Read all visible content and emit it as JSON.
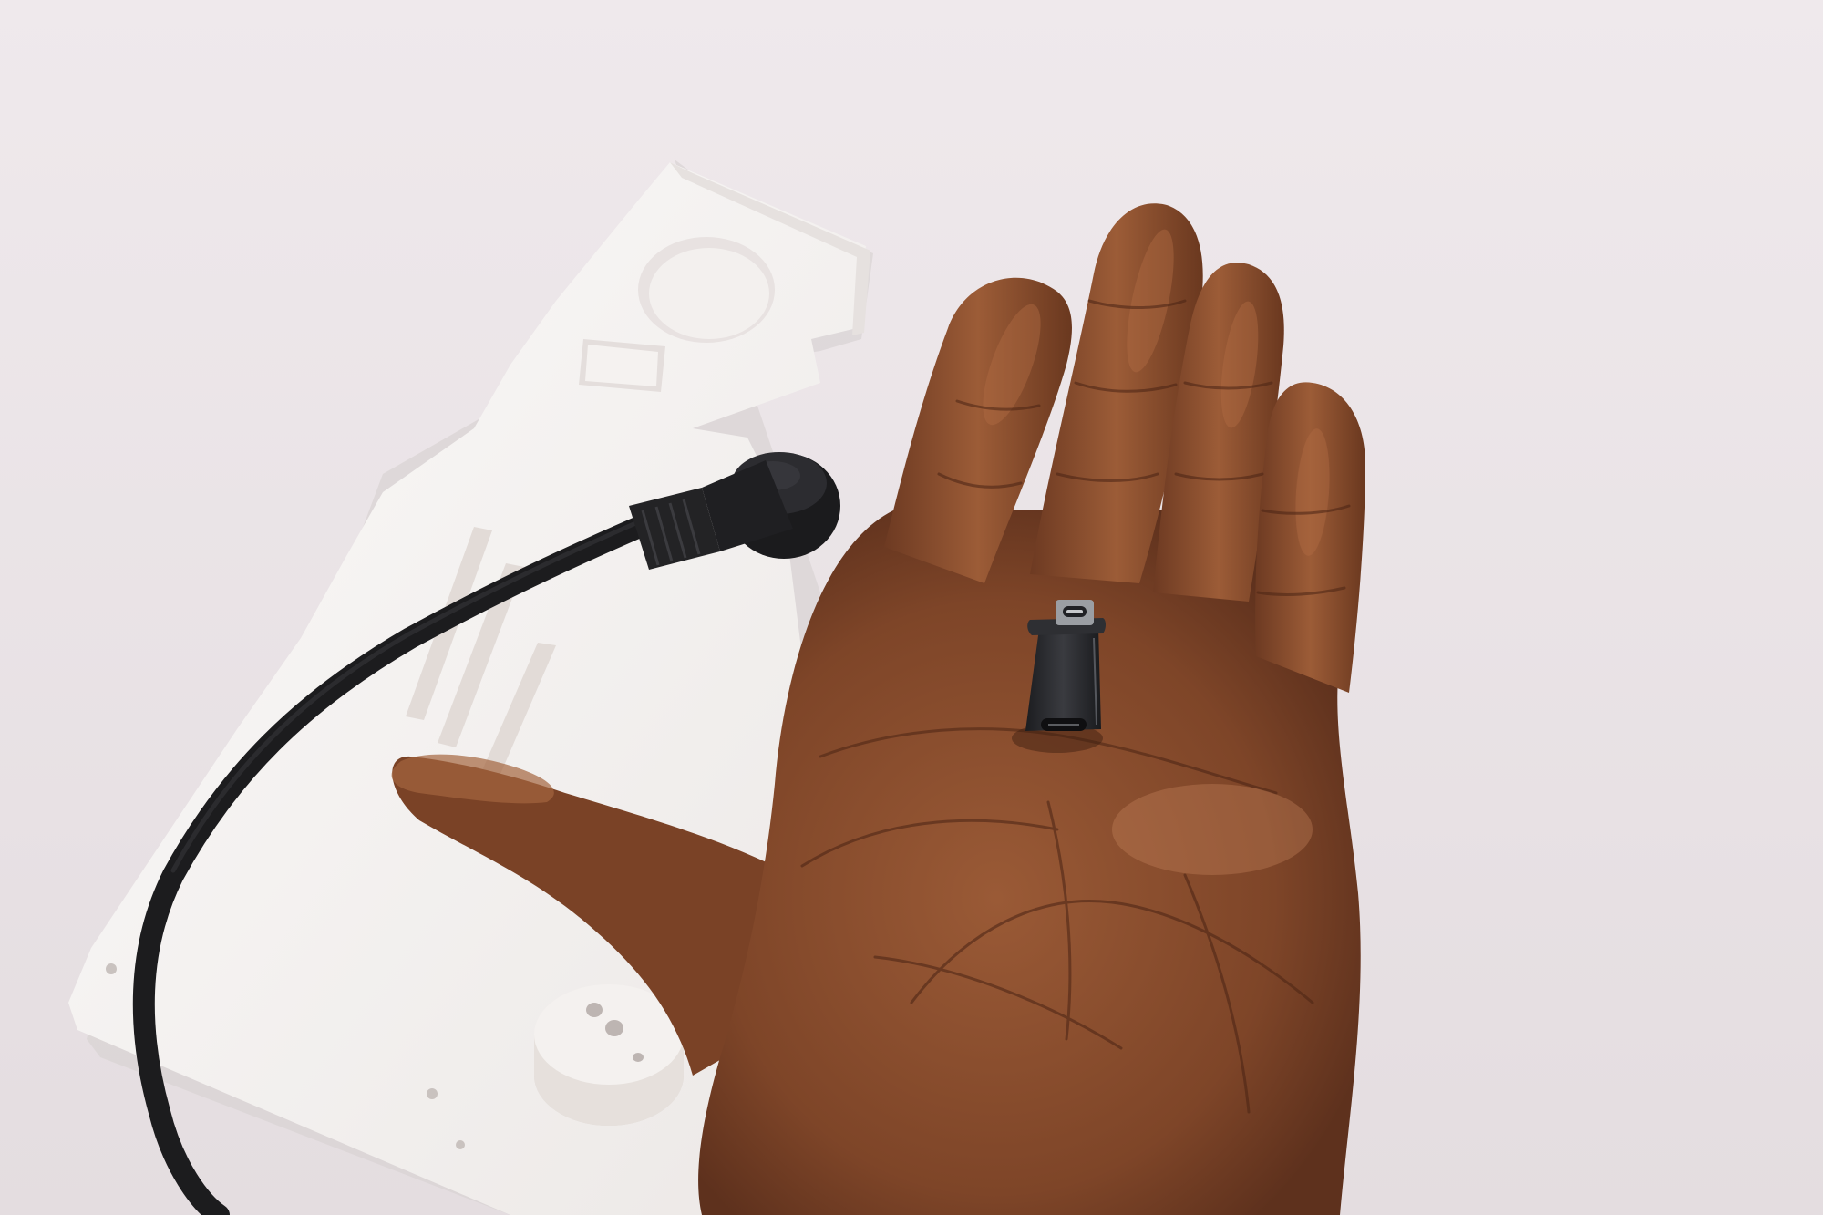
{
  "photo": {
    "subject": "hand-holding-usb-c-adapter",
    "colors": {
      "background": "#ebe5e8",
      "plate": "#f6f4f2",
      "plate_shadow": "#d9d3d3",
      "cable": "#232325",
      "skin": "#8a4f2e",
      "skin_dark": "#5c2f1b",
      "skin_light": "#a86642",
      "adapter": "#2b2c30"
    }
  }
}
